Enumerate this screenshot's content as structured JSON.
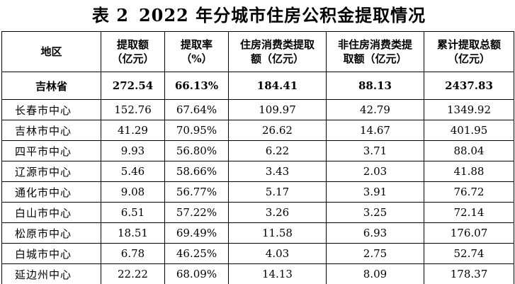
{
  "title": {
    "prefix": "表 2",
    "text": "2022 年分城市住房公积金提取情况"
  },
  "table": {
    "headers": [
      {
        "line1": "地区",
        "line2": ""
      },
      {
        "line1": "提取额",
        "line2": "（亿元）"
      },
      {
        "line1": "提取率",
        "line2": "（%）"
      },
      {
        "line1": "住房消费类提取",
        "line2": "额（亿元）"
      },
      {
        "line1": "非住房消费类提",
        "line2": "取额（亿元）"
      },
      {
        "line1": "累计提取总额",
        "line2": "（亿元）"
      }
    ],
    "total": {
      "region": "吉林省",
      "amount": "272.54",
      "rate": "66.13%",
      "housing": "184.41",
      "non_housing": "88.13",
      "cumulative": "2437.83"
    },
    "rows": [
      {
        "region": "长春市中心",
        "amount": "152.76",
        "rate": "67.64%",
        "housing": "109.97",
        "non_housing": "42.79",
        "cumulative": "1349.92"
      },
      {
        "region": "吉林市中心",
        "amount": "41.29",
        "rate": "70.95%",
        "housing": "26.62",
        "non_housing": "14.67",
        "cumulative": "401.95"
      },
      {
        "region": "四平市中心",
        "amount": "9.93",
        "rate": "56.80%",
        "housing": "6.22",
        "non_housing": "3.71",
        "cumulative": "88.04"
      },
      {
        "region": "辽源市中心",
        "amount": "5.46",
        "rate": "58.66%",
        "housing": "3.43",
        "non_housing": "2.03",
        "cumulative": "41.88"
      },
      {
        "region": "通化市中心",
        "amount": "9.08",
        "rate": "56.77%",
        "housing": "5.17",
        "non_housing": "3.91",
        "cumulative": "76.72"
      },
      {
        "region": "白山市中心",
        "amount": "6.51",
        "rate": "57.22%",
        "housing": "3.26",
        "non_housing": "3.25",
        "cumulative": "72.14"
      },
      {
        "region": "松原市中心",
        "amount": "18.51",
        "rate": "69.49%",
        "housing": "11.58",
        "non_housing": "6.93",
        "cumulative": "176.07"
      },
      {
        "region": "白城市中心",
        "amount": "6.78",
        "rate": "46.25%",
        "housing": "4.03",
        "non_housing": "2.75",
        "cumulative": "52.74"
      },
      {
        "region": "延边州中心",
        "amount": "22.22",
        "rate": "68.09%",
        "housing": "14.13",
        "non_housing": "8.09",
        "cumulative": "178.37"
      }
    ]
  }
}
